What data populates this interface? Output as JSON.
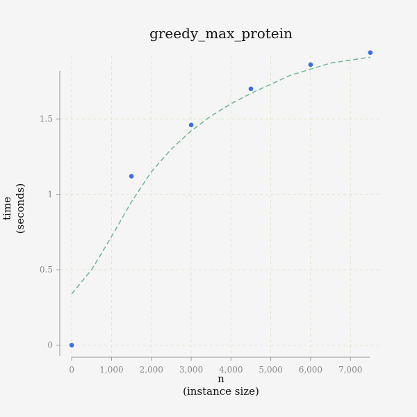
{
  "chart_data": {
    "type": "scatter",
    "title": "greedy_max_protein",
    "xlabel_lines": [
      "n",
      "(instance size)"
    ],
    "ylabel_lines": [
      "time",
      "(seconds)"
    ],
    "xlim": [
      -300,
      7800
    ],
    "ylim": [
      -0.08,
      1.92
    ],
    "x_ticks": [
      0,
      1000,
      2000,
      3000,
      4000,
      5000,
      6000,
      7000
    ],
    "x_tick_labels": [
      "0",
      "1,000",
      "2,000",
      "3,000",
      "4,000",
      "5,000",
      "6,000",
      "7,000"
    ],
    "y_ticks": [
      0,
      0.5,
      1,
      1.5
    ],
    "y_tick_labels": [
      "0",
      "0.5",
      "1",
      "1.5"
    ],
    "grid": true,
    "series": [
      {
        "kind": "points",
        "x": [
          0,
          1500,
          3000,
          4500,
          6000,
          7500
        ],
        "y": [
          0.0,
          1.12,
          1.46,
          1.7,
          1.86,
          1.94
        ],
        "color": "#3a6ee8"
      },
      {
        "kind": "fit-line",
        "x": [
          0,
          500,
          1000,
          1500,
          2000,
          2500,
          3000,
          3500,
          4000,
          4500,
          5000,
          5500,
          6000,
          6500,
          7000,
          7500
        ],
        "y": [
          0.34,
          0.5,
          0.72,
          0.95,
          1.15,
          1.3,
          1.42,
          1.52,
          1.6,
          1.67,
          1.73,
          1.79,
          1.83,
          1.87,
          1.89,
          1.91
        ],
        "color": "#6fb593"
      }
    ]
  }
}
